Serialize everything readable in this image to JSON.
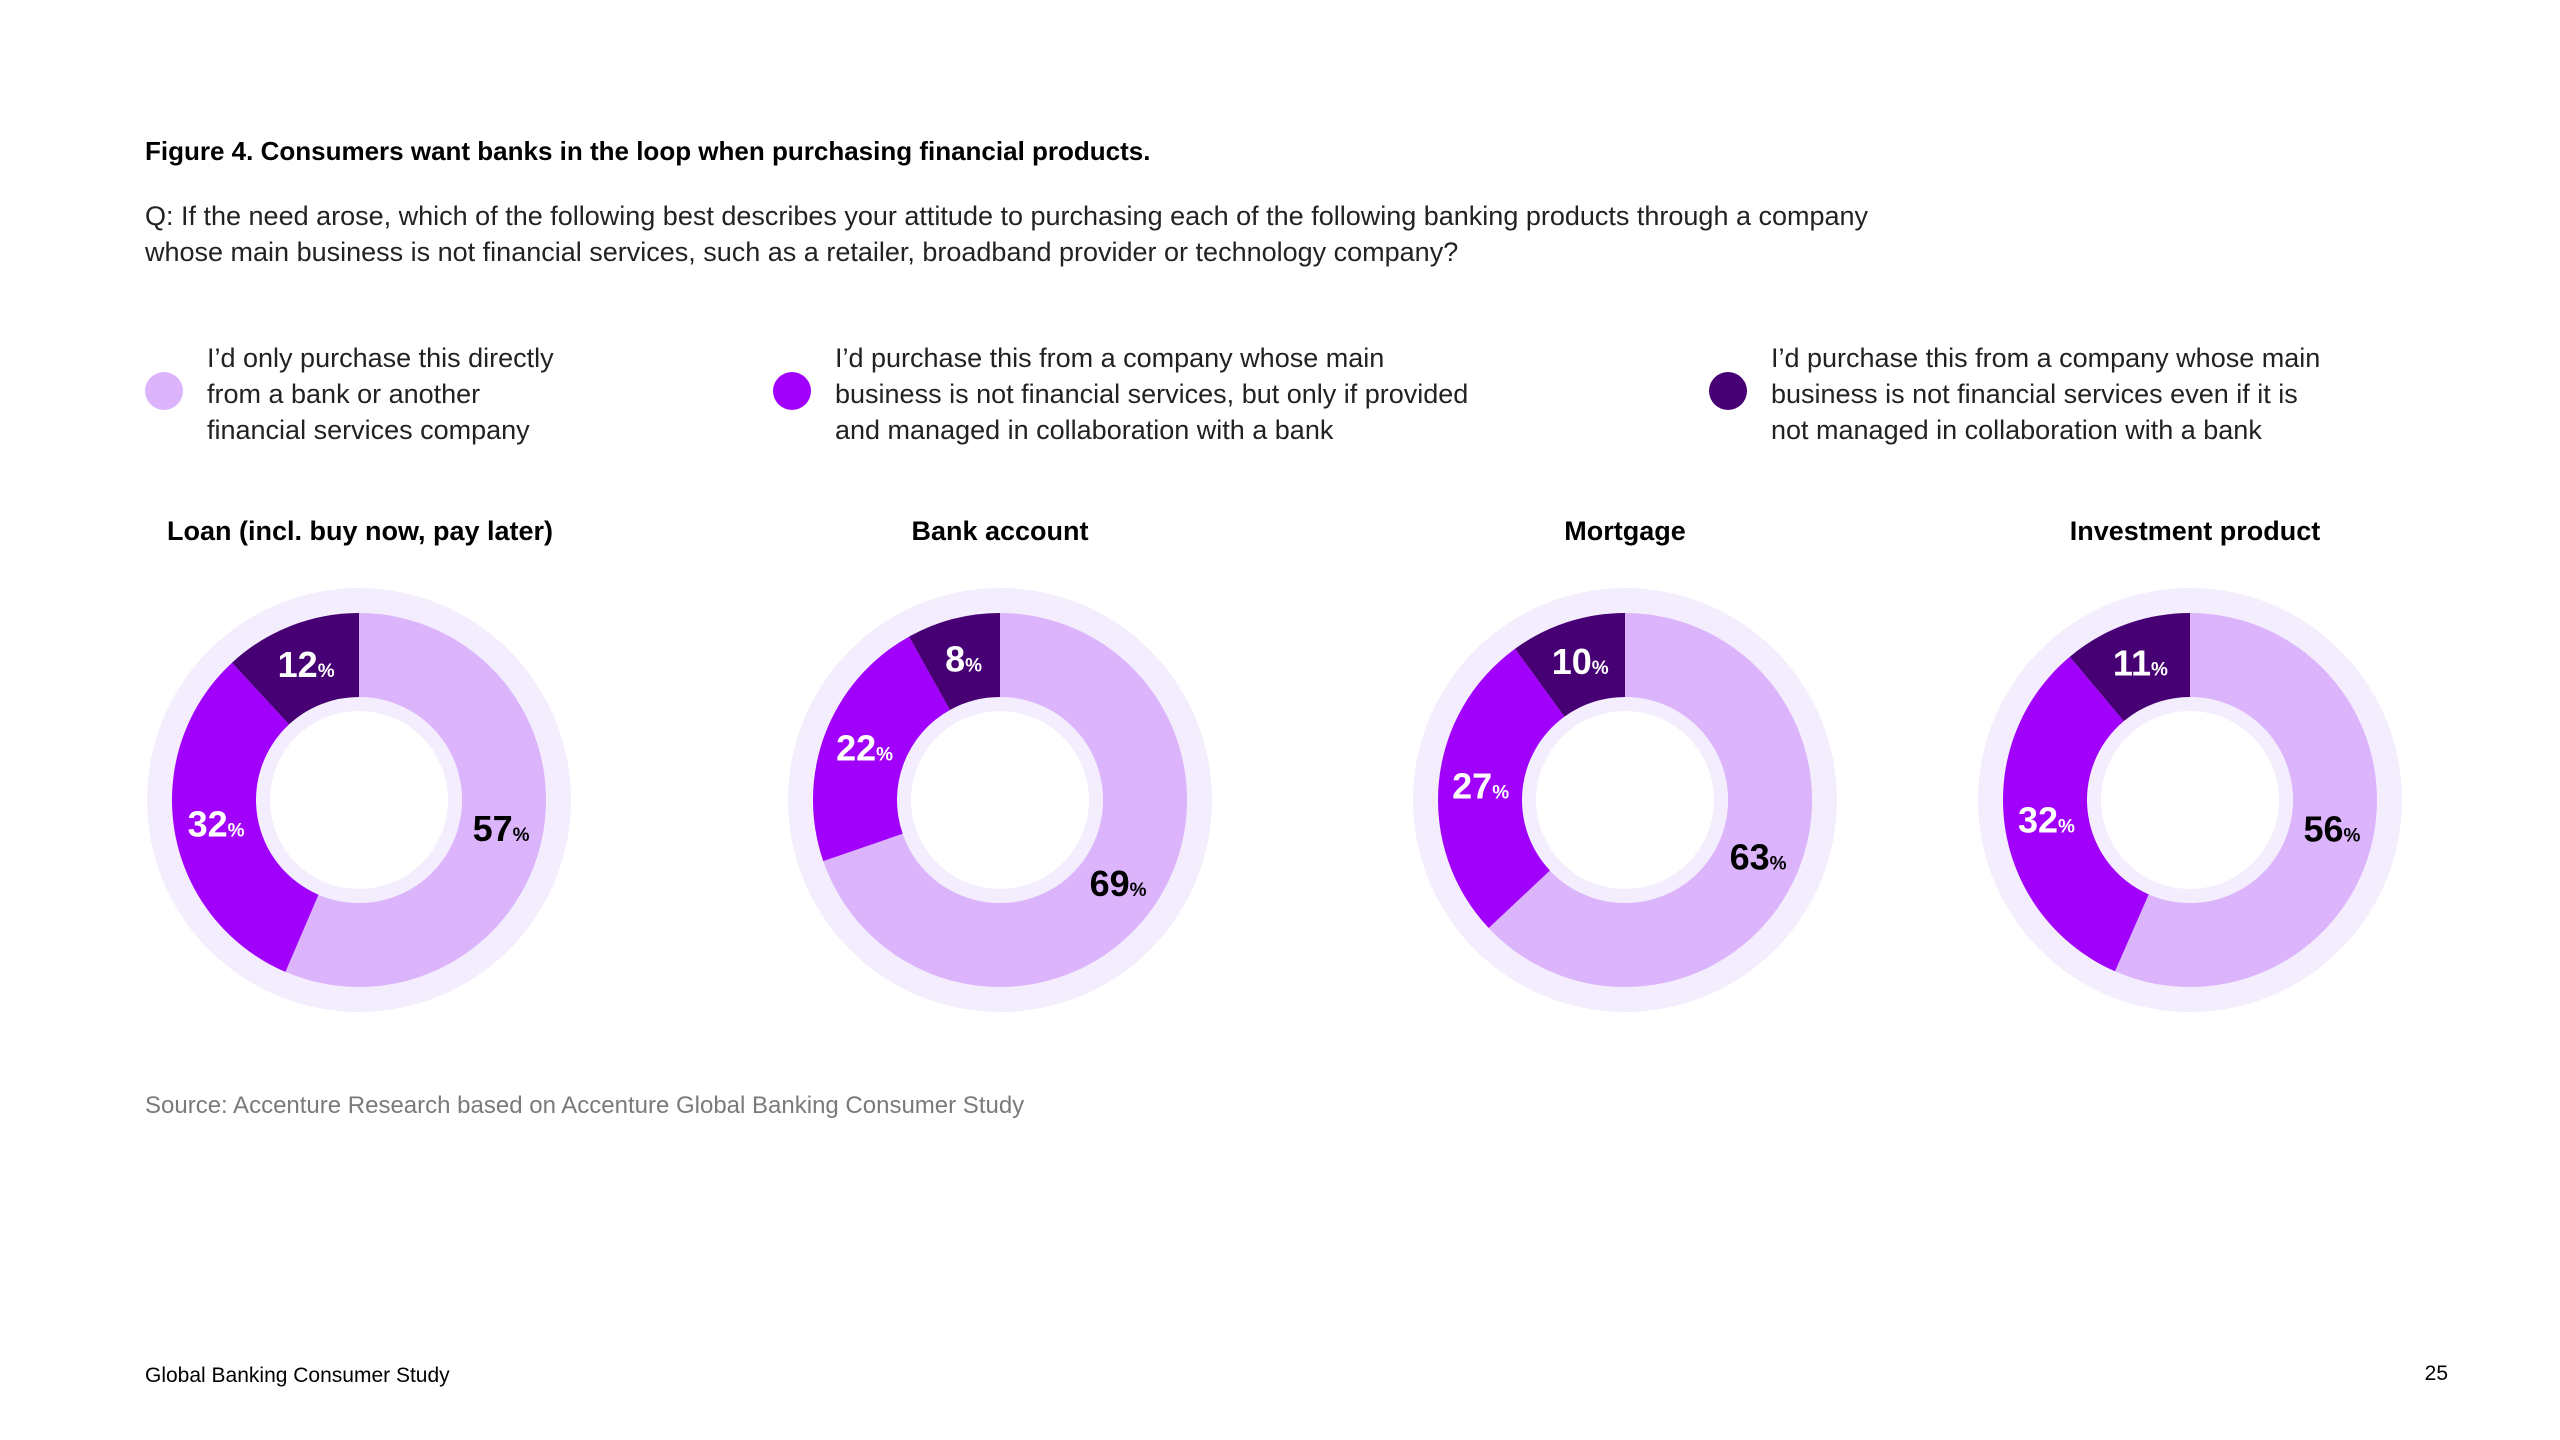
{
  "figure_title": "Figure 4. Consumers want banks in the loop when purchasing financial products.",
  "question": "Q: If the need arose, which of the following best describes your attitude to purchasing each of the following banking products through a company whose main business is not financial services, such as a retailer, broadband provider or technology company?",
  "legend": [
    {
      "label": "I’d only purchase this directly\nfrom a bank or another\nfinancial services company",
      "color": "#dbb4fc"
    },
    {
      "label": "I’d purchase this from a company whose main\nbusiness is not financial services, but only if provided\nand managed in collaboration with a bank",
      "color": "#a100fa"
    },
    {
      "label": "I’d purchase this from a company whose main\nbusiness is not financial services even if it is\nnot managed in collaboration with a bank",
      "color": "#460073"
    }
  ],
  "chart_data": [
    {
      "type": "pie",
      "title": "Loan (incl. buy now, pay later)",
      "series": [
        {
          "name": "I’d only purchase this directly from a bank or another financial services company",
          "value": 57
        },
        {
          "name": "I’d purchase this from a company whose main business is not financial services, but only if provided and managed in collaboration with a bank",
          "value": 32
        },
        {
          "name": "I’d purchase this from a company whose main business is not financial services even if it is not managed in collaboration with a bank",
          "value": 12
        }
      ],
      "unit": "%"
    },
    {
      "type": "pie",
      "title": "Bank account",
      "series": [
        {
          "name": "I’d only purchase this directly from a bank or another financial services company",
          "value": 69
        },
        {
          "name": "I’d purchase this from a company whose main business is not financial services, but only if provided and managed in collaboration with a bank",
          "value": 22
        },
        {
          "name": "I’d purchase this from a company whose main business is not financial services even if it is not managed in collaboration with a bank",
          "value": 8
        }
      ],
      "unit": "%"
    },
    {
      "type": "pie",
      "title": "Mortgage",
      "series": [
        {
          "name": "I’d only purchase this directly from a bank or another financial services company",
          "value": 63
        },
        {
          "name": "I’d purchase this from a company whose main business is not financial services, but only if provided and managed in collaboration with a bank",
          "value": 27
        },
        {
          "name": "I’d purchase this from a company whose main business is not financial services even if it is not managed in collaboration with a bank",
          "value": 10
        }
      ],
      "unit": "%"
    },
    {
      "type": "pie",
      "title": "Investment product",
      "series": [
        {
          "name": "I’d only purchase this directly from a bank or another financial services company",
          "value": 56
        },
        {
          "name": "I’d purchase this from a company whose main business is not financial services, but only if provided and managed in collaboration with a bank",
          "value": 32
        },
        {
          "name": "I’d purchase this from a company whose main business is not financial services even if it is not managed in collaboration with a bank",
          "value": 11
        }
      ],
      "unit": "%"
    }
  ],
  "label_colors": [
    "#000000",
    "#ffffff",
    "#ffffff"
  ],
  "ring_bg_color": "#f3edfd",
  "source": "Source: Accenture Research based on Accenture Global Banking Consumer Study",
  "footer": {
    "left": "Global Banking Consumer Study",
    "page_number": "25"
  }
}
